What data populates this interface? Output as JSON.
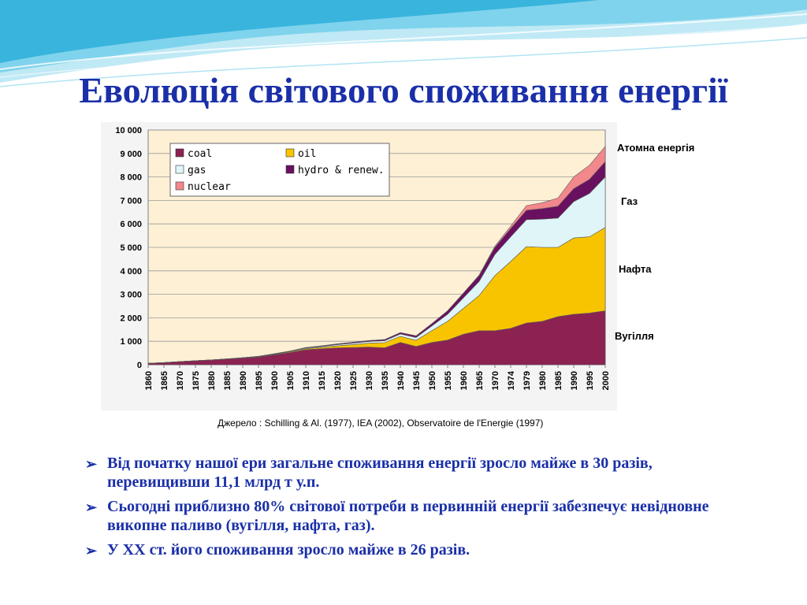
{
  "slide": {
    "title": "Еволюція світового споживання енергії",
    "source": "Джерело : Schilling & Al. (1977), IEA (2002), Observatoire de l'Energie (1997)",
    "side_labels": [
      "Атомна енергія",
      "Газ",
      "Нафта",
      "Вугілля"
    ],
    "bullets": [
      "Від початку нашої ери загальне споживання енергії зросло майже в 30 разів, перевищивши 11,1 млрд т у.п.",
      "Сьогодні приблизно 80% світової потреби в первинній енергії забезпечує невідновне викопне паливо (вугілля, нафта, газ).",
      "У ХХ ст. його споживання зросло майже в 26 разів."
    ]
  },
  "chart_data": {
    "type": "area",
    "stacked": true,
    "categories": [
      "1860",
      "1865",
      "1870",
      "1875",
      "1880",
      "1885",
      "1890",
      "1895",
      "1900",
      "1905",
      "1910",
      "1915",
      "1920",
      "1925",
      "1930",
      "1935",
      "1940",
      "1945",
      "1950",
      "1955",
      "1960",
      "1965",
      "1970",
      "1974",
      "1979",
      "1980",
      "1985",
      "1990",
      "1995",
      "2000"
    ],
    "series": [
      {
        "name": "coal",
        "color": "#8b2252",
        "values": [
          60,
          90,
          130,
          170,
          200,
          240,
          280,
          330,
          420,
          520,
          640,
          680,
          720,
          730,
          750,
          720,
          950,
          780,
          950,
          1050,
          1300,
          1450,
          1450,
          1550,
          1780,
          1850,
          2050,
          2150,
          2200,
          2300
        ]
      },
      {
        "name": "oil",
        "color": "#f8c400",
        "values": [
          0,
          0,
          0,
          0,
          5,
          5,
          10,
          15,
          20,
          30,
          40,
          60,
          90,
          130,
          170,
          220,
          260,
          260,
          500,
          800,
          1100,
          1500,
          2350,
          2850,
          3250,
          3150,
          2950,
          3250,
          3250,
          3550
        ]
      },
      {
        "name": "gas",
        "color": "#dff5f8",
        "values": [
          0,
          0,
          0,
          0,
          0,
          5,
          10,
          10,
          15,
          20,
          30,
          40,
          50,
          60,
          70,
          80,
          100,
          120,
          200,
          300,
          450,
          600,
          900,
          1050,
          1150,
          1200,
          1250,
          1550,
          1850,
          2150
        ]
      },
      {
        "name": "hydro & renew.",
        "color": "#6a1060",
        "values": [
          0,
          0,
          0,
          0,
          0,
          0,
          0,
          5,
          10,
          10,
          20,
          25,
          30,
          35,
          40,
          50,
          60,
          70,
          100,
          150,
          200,
          250,
          300,
          350,
          400,
          450,
          500,
          550,
          600,
          650
        ]
      },
      {
        "name": "nuclear",
        "color": "#f2888c",
        "values": [
          0,
          0,
          0,
          0,
          0,
          0,
          0,
          0,
          0,
          0,
          0,
          0,
          0,
          0,
          0,
          0,
          0,
          0,
          0,
          0,
          0,
          20,
          50,
          100,
          200,
          250,
          350,
          500,
          600,
          650
        ]
      }
    ],
    "ylim": [
      0,
      10000
    ],
    "yticks": [
      "0",
      "1 000",
      "2 000",
      "3 000",
      "4 000",
      "5 000",
      "6 000",
      "7 000",
      "8 000",
      "9 000",
      "10 000"
    ],
    "legend_position": "top-left",
    "grid": true
  }
}
